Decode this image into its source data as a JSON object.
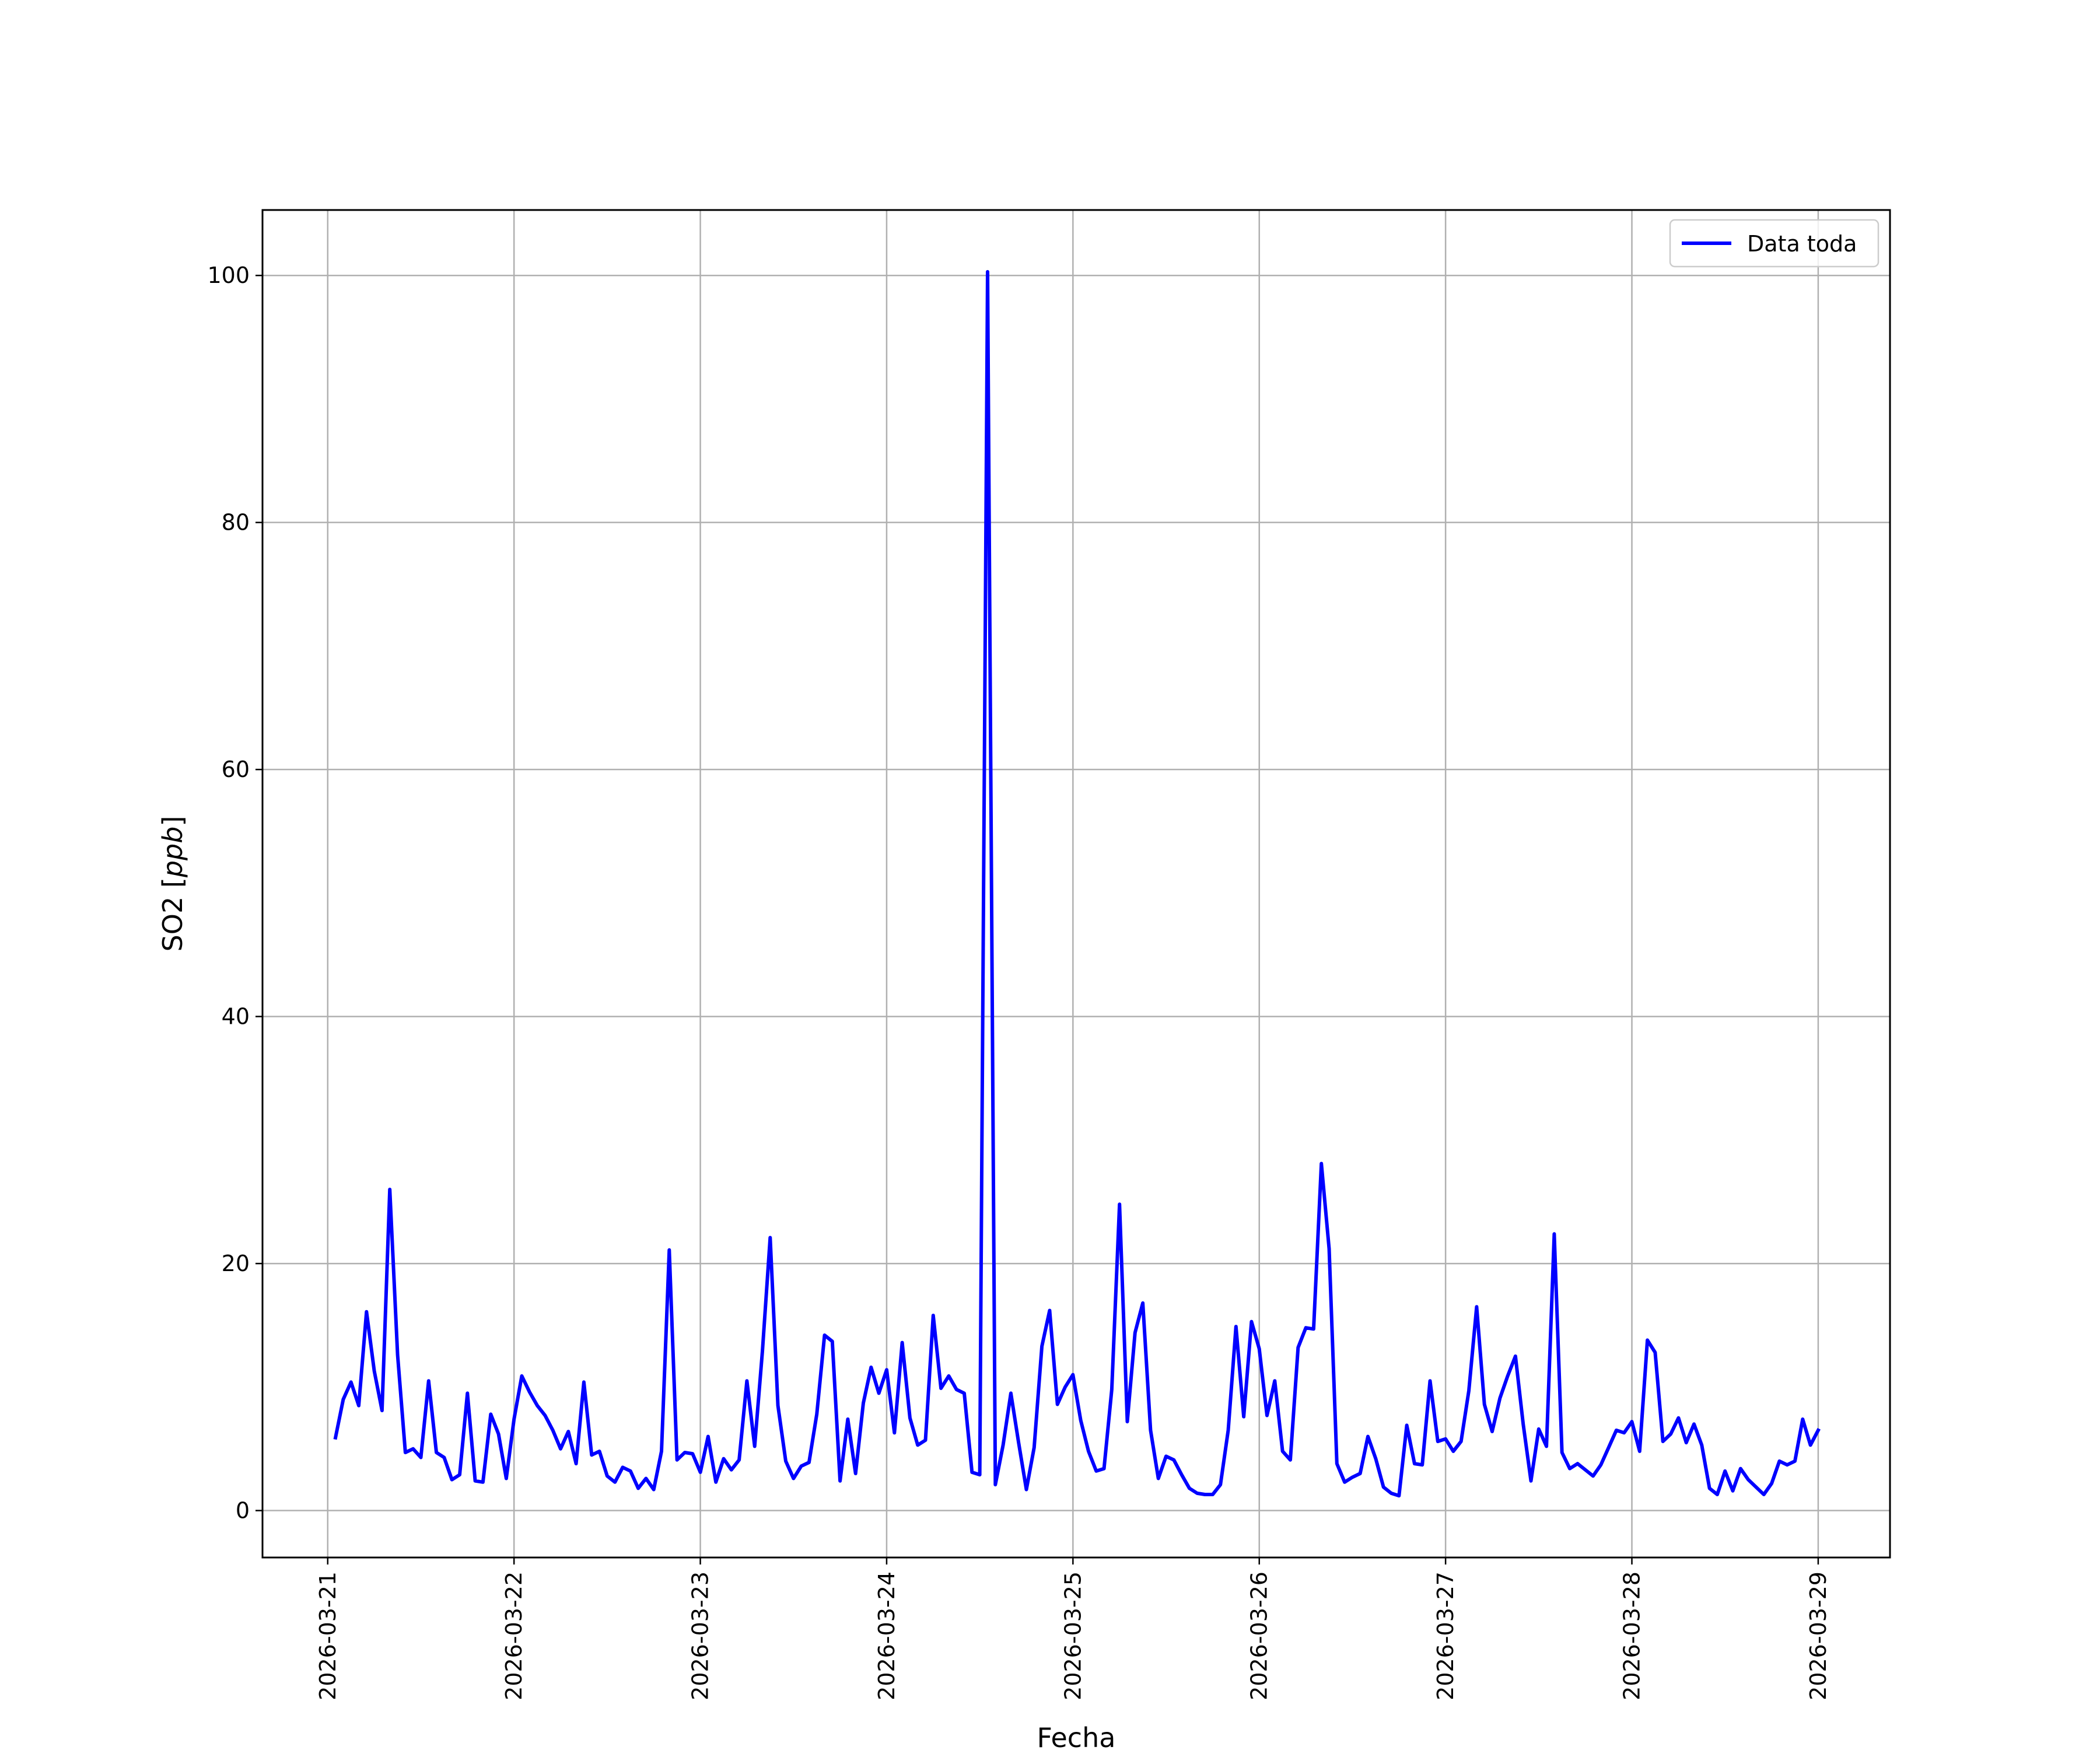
{
  "chart_data": {
    "type": "line",
    "title": "",
    "xlabel": "Fecha",
    "ylabel_text": "SO2 [",
    "ylabel_unit": "ppb",
    "ylabel_close": "]",
    "ylim": [
      -3.8,
      105.3
    ],
    "xlim": [
      "2026-03-20 15:36",
      "2026-03-29 09:15"
    ],
    "grid": true,
    "legend_position": "top-right",
    "xticks": [
      "2026-03-21",
      "2026-03-22",
      "2026-03-23",
      "2026-03-24",
      "2026-03-25",
      "2026-03-26",
      "2026-03-27",
      "2026-03-28",
      "2026-03-29"
    ],
    "yticks": [
      0,
      20,
      40,
      60,
      80,
      100
    ],
    "series": [
      {
        "name": "Data toda",
        "color": "#0000ff",
        "start": "2026-03-21 01:00",
        "step_hours": 1,
        "values_note": "",
        "x": [
          "2026-03-21 01:00",
          "2026-03-21 02:00",
          "2026-03-21 03:00",
          "2026-03-21 04:00",
          "2026-03-21 05:00",
          "2026-03-21 06:00",
          "2026-03-21 07:00",
          "2026-03-21 08:00",
          "2026-03-21 09:00",
          "2026-03-21 10:00",
          "2026-03-21 11:00",
          "2026-03-21 12:00",
          "2026-03-21 13:00",
          "2026-03-21 14:00",
          "2026-03-21 15:00",
          "2026-03-21 16:00",
          "2026-03-21 17:00",
          "2026-03-21 18:00",
          "2026-03-21 19:00",
          "2026-03-21 20:00",
          "2026-03-21 21:00",
          "2026-03-21 22:00",
          "2026-03-21 23:00",
          "2026-03-22 00:00",
          "2026-03-22 01:00",
          "2026-03-22 02:00",
          "2026-03-22 03:00",
          "2026-03-22 04:00",
          "2026-03-22 05:00",
          "2026-03-22 06:00",
          "2026-03-22 07:00",
          "2026-03-22 08:00",
          "2026-03-22 09:00",
          "2026-03-22 10:00",
          "2026-03-22 11:00",
          "2026-03-22 12:00",
          "2026-03-22 13:00",
          "2026-03-22 14:00",
          "2026-03-22 15:00",
          "2026-03-22 16:00",
          "2026-03-22 17:00",
          "2026-03-22 18:00",
          "2026-03-22 19:00",
          "2026-03-22 20:00",
          "2026-03-22 21:00",
          "2026-03-22 22:00",
          "2026-03-22 23:00",
          "2026-03-23 00:00",
          "2026-03-23 01:00",
          "2026-03-23 02:00",
          "2026-03-23 03:00",
          "2026-03-23 04:00",
          "2026-03-23 05:00",
          "2026-03-23 06:00",
          "2026-03-23 07:00",
          "2026-03-23 08:00",
          "2026-03-23 09:00",
          "2026-03-23 10:00",
          "2026-03-23 11:00",
          "2026-03-23 12:00",
          "2026-03-23 13:00",
          "2026-03-23 14:00",
          "2026-03-23 15:00",
          "2026-03-23 16:00",
          "2026-03-23 17:00",
          "2026-03-23 18:00",
          "2026-03-23 19:00",
          "2026-03-23 20:00",
          "2026-03-23 21:00",
          "2026-03-23 22:00",
          "2026-03-23 23:00",
          "2026-03-24 00:00",
          "2026-03-24 01:00",
          "2026-03-24 02:00",
          "2026-03-24 03:00",
          "2026-03-24 04:00",
          "2026-03-24 05:00",
          "2026-03-24 06:00",
          "2026-03-24 07:00",
          "2026-03-24 08:00",
          "2026-03-24 09:00",
          "2026-03-24 10:00",
          "2026-03-24 11:00",
          "2026-03-24 12:00",
          "2026-03-24 13:00",
          "2026-03-24 14:00",
          "2026-03-24 15:00",
          "2026-03-24 16:00",
          "2026-03-24 17:00",
          "2026-03-24 18:00",
          "2026-03-24 19:00",
          "2026-03-24 20:00",
          "2026-03-24 21:00",
          "2026-03-24 22:00",
          "2026-03-24 23:00",
          "2026-03-25 00:00",
          "2026-03-25 01:00",
          "2026-03-25 02:00",
          "2026-03-25 03:00",
          "2026-03-25 04:00",
          "2026-03-25 05:00",
          "2026-03-25 06:00",
          "2026-03-25 07:00",
          "2026-03-25 08:00",
          "2026-03-25 09:00",
          "2026-03-25 10:00",
          "2026-03-25 11:00",
          "2026-03-25 12:00",
          "2026-03-25 13:00",
          "2026-03-25 14:00",
          "2026-03-25 15:00",
          "2026-03-25 16:00",
          "2026-03-25 17:00",
          "2026-03-25 18:00",
          "2026-03-25 19:00",
          "2026-03-25 20:00",
          "2026-03-25 21:00",
          "2026-03-25 22:00",
          "2026-03-25 23:00",
          "2026-03-26 00:00",
          "2026-03-26 01:00",
          "2026-03-26 02:00",
          "2026-03-26 03:00",
          "2026-03-26 04:00",
          "2026-03-26 05:00",
          "2026-03-26 06:00",
          "2026-03-26 07:00",
          "2026-03-26 08:00",
          "2026-03-26 09:00",
          "2026-03-26 10:00",
          "2026-03-26 11:00",
          "2026-03-26 12:00",
          "2026-03-26 13:00",
          "2026-03-26 14:00",
          "2026-03-26 15:00",
          "2026-03-26 16:00",
          "2026-03-26 17:00",
          "2026-03-26 18:00",
          "2026-03-26 19:00",
          "2026-03-26 20:00",
          "2026-03-26 21:00",
          "2026-03-26 22:00",
          "2026-03-26 23:00",
          "2026-03-27 00:00",
          "2026-03-27 01:00",
          "2026-03-27 02:00",
          "2026-03-27 03:00",
          "2026-03-27 04:00",
          "2026-03-27 05:00",
          "2026-03-27 06:00",
          "2026-03-27 07:00",
          "2026-03-27 08:00",
          "2026-03-27 09:00",
          "2026-03-27 10:00",
          "2026-03-27 11:00",
          "2026-03-27 12:00",
          "2026-03-27 13:00",
          "2026-03-27 14:00",
          "2026-03-27 15:00",
          "2026-03-27 16:00",
          "2026-03-27 17:00",
          "2026-03-27 18:00",
          "2026-03-27 19:00",
          "2026-03-27 20:00",
          "2026-03-27 21:00",
          "2026-03-27 22:00",
          "2026-03-27 23:00",
          "2026-03-28 00:00",
          "2026-03-28 01:00",
          "2026-03-28 02:00",
          "2026-03-28 03:00",
          "2026-03-28 04:00",
          "2026-03-28 05:00",
          "2026-03-28 06:00",
          "2026-03-28 07:00",
          "2026-03-28 08:00",
          "2026-03-28 09:00",
          "2026-03-28 10:00",
          "2026-03-28 11:00",
          "2026-03-28 12:00",
          "2026-03-28 13:00",
          "2026-03-28 14:00",
          "2026-03-28 15:00",
          "2026-03-28 16:00",
          "2026-03-28 17:00",
          "2026-03-28 18:00",
          "2026-03-28 19:00",
          "2026-03-28 20:00",
          "2026-03-28 21:00",
          "2026-03-28 22:00",
          "2026-03-28 23:00",
          "2026-03-29 00:00"
        ],
        "values": [
          5.9,
          9.0,
          10.4,
          8.5,
          16.1,
          11.3,
          8.1,
          26.0,
          12.6,
          4.7,
          5.0,
          4.3,
          10.5,
          4.7,
          4.3,
          2.5,
          2.9,
          9.5,
          2.4,
          2.3,
          7.8,
          6.2,
          2.6,
          7.4,
          10.9,
          9.6,
          8.5,
          7.7,
          6.5,
          5.0,
          6.4,
          3.8,
          10.4,
          4.5,
          4.8,
          2.8,
          2.3,
          3.5,
          3.2,
          1.8,
          2.6,
          1.7,
          4.8,
          21.1,
          4.1,
          4.7,
          4.6,
          3.1,
          6.0,
          2.3,
          4.2,
          3.3,
          4.1,
          10.5,
          5.2,
          12.9,
          22.1,
          8.5,
          4.0,
          2.6,
          3.6,
          3.9,
          7.8,
          14.2,
          13.7,
          2.4,
          7.4,
          3.0,
          8.7,
          11.6,
          9.5,
          11.4,
          6.3,
          13.6,
          7.5,
          5.3,
          5.7,
          15.8,
          9.9,
          10.9,
          9.8,
          9.5,
          3.1,
          2.9,
          100.3,
          2.1,
          5.3,
          9.5,
          5.5,
          1.7,
          5.1,
          13.3,
          16.2,
          8.6,
          10.0,
          11.0,
          7.3,
          4.8,
          3.2,
          3.4,
          9.8,
          24.8,
          7.2,
          14.4,
          16.8,
          6.5,
          2.6,
          4.4,
          4.1,
          2.9,
          1.8,
          1.4,
          1.3,
          1.3,
          2.1,
          6.5,
          14.9,
          7.6,
          15.3,
          13.1,
          7.7,
          10.5,
          4.8,
          4.1,
          13.2,
          14.8,
          14.7,
          28.1,
          21.2,
          3.8,
          2.3,
          2.7,
          3.0,
          6.0,
          4.2,
          1.9,
          1.4,
          1.2,
          6.9,
          3.8,
          3.7,
          10.5,
          5.6,
          5.8,
          4.8,
          5.6,
          9.7,
          16.5,
          8.6,
          6.4,
          9.1,
          10.9,
          12.5,
          7.0,
          2.4,
          6.6,
          5.2,
          22.4,
          4.7,
          3.4,
          3.8,
          3.3,
          2.8,
          3.7,
          5.1,
          6.5,
          6.3,
          7.2,
          4.8,
          13.8,
          12.8,
          5.6,
          6.2,
          7.5,
          5.5,
          7.0,
          5.3,
          1.8,
          1.3,
          3.2,
          1.6,
          3.4,
          2.5,
          1.9,
          1.3,
          2.2,
          4.0,
          3.7,
          4.0,
          7.4,
          5.3,
          6.5
        ]
      }
    ]
  }
}
